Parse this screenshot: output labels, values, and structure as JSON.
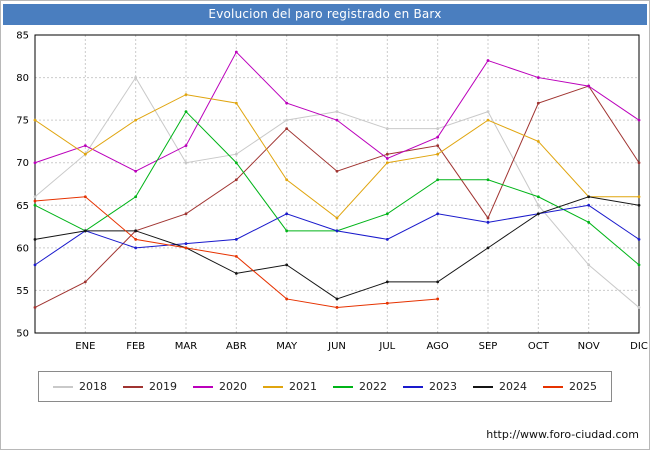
{
  "title": "Evolucion del paro registrado en Barx",
  "footer": {
    "url": "http://www.foro-ciudad.com"
  },
  "chart_data": {
    "type": "line",
    "title": "Evolucion del paro registrado en Barx",
    "x_labels": [
      "",
      "ENE",
      "FEB",
      "MAR",
      "ABR",
      "MAY",
      "JUN",
      "JUL",
      "AGO",
      "SEP",
      "OCT",
      "NOV",
      "DIC"
    ],
    "ylim": [
      50,
      85
    ],
    "y_ticks": [
      50,
      55,
      60,
      65,
      70,
      75,
      80,
      85
    ],
    "grid": true,
    "legend_position": "bottom",
    "series": [
      {
        "name": "2018",
        "color": "#c9c9c9",
        "values": [
          66,
          71,
          80,
          70,
          71,
          75,
          76,
          74,
          74,
          76,
          65,
          58,
          53
        ]
      },
      {
        "name": "2019",
        "color": "#a03431",
        "values": [
          53,
          56,
          62,
          64,
          68,
          74,
          69,
          71,
          72,
          63.5,
          77,
          79,
          70
        ]
      },
      {
        "name": "2020",
        "color": "#bb00bb",
        "values": [
          70,
          72,
          69,
          72,
          83,
          77,
          75,
          70.5,
          73,
          82,
          80,
          79,
          75
        ]
      },
      {
        "name": "2021",
        "color": "#e0a50f",
        "values": [
          75,
          71,
          75,
          78,
          77,
          68,
          63.5,
          70,
          71,
          75,
          72.5,
          66,
          66
        ]
      },
      {
        "name": "2022",
        "color": "#00b418",
        "values": [
          65,
          62,
          66,
          76,
          70,
          62,
          62,
          64,
          68,
          68,
          66,
          63,
          58
        ]
      },
      {
        "name": "2023",
        "color": "#1a1acc",
        "values": [
          58,
          62,
          60,
          60.5,
          61,
          64,
          62,
          61,
          64,
          63,
          64,
          65,
          61
        ]
      },
      {
        "name": "2024",
        "color": "#151515",
        "values": [
          61,
          62,
          62,
          60,
          57,
          58,
          54,
          56,
          56,
          60,
          64,
          66,
          65
        ]
      },
      {
        "name": "2025",
        "color": "#e63200",
        "values": [
          65.5,
          66,
          61,
          60,
          59,
          54,
          53,
          53.5,
          54,
          null,
          null,
          null,
          null
        ]
      }
    ]
  }
}
